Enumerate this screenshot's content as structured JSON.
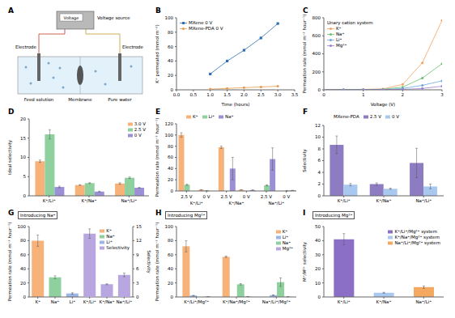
{
  "diagram": {
    "label": "A",
    "texts": {
      "voltage_source": "Voltage source",
      "display": "Voltage",
      "electrode_left": "Electrode",
      "electrode_right": "Electrode",
      "feed": "Feed solution",
      "membrane": "Membrane",
      "water": "Pure water"
    }
  },
  "chart_data": [
    {
      "label": "B",
      "type": "line",
      "x_label": "Time (hours)",
      "y_label": "K⁺ permeated (mmol m⁻²)",
      "x": [
        1,
        1.5,
        2,
        2.5,
        3
      ],
      "series": [
        {
          "name": "MXene 0 V",
          "color": "#2f6db5",
          "marker": "square",
          "line_style": "solid",
          "values": [
            22,
            40,
            55,
            72,
            92
          ]
        },
        {
          "name": "MXene-PDA 0 V",
          "color": "#e89a4a",
          "marker": "circle",
          "line_style": "solid",
          "values": [
            1,
            2,
            3,
            4,
            5
          ]
        }
      ],
      "xlim": [
        0,
        3.5
      ],
      "xticks": [
        {
          "value": 0,
          "label": "0.0"
        },
        0.5,
        {
          "value": 1,
          "label": "1.0"
        },
        1.5,
        {
          "value": 2,
          "label": "2.0"
        },
        2.5,
        {
          "value": 3,
          "label": "3.0"
        },
        3.5
      ],
      "ylim": [
        0,
        100
      ],
      "yticks": [
        0,
        20,
        40,
        60,
        80,
        100
      ],
      "legend": "upper left"
    },
    {
      "label": "C",
      "type": "line",
      "title": "Unary cation system",
      "x_label": "Voltage (V)",
      "y_label": "Permeation rate (mmol m⁻² hour⁻¹)",
      "x": [
        0,
        0.5,
        1,
        1.5,
        2,
        2.5,
        3
      ],
      "series": [
        {
          "name": "K⁺",
          "color": "#f4a261",
          "marker": "circle",
          "line_style": "solid",
          "values": [
            2,
            3,
            5,
            10,
            60,
            300,
            770
          ]
        },
        {
          "name": "Na⁺",
          "color": "#6cc070",
          "marker": "circle",
          "line_style": "solid",
          "values": [
            1,
            2,
            3,
            6,
            30,
            130,
            290
          ]
        },
        {
          "name": "Li⁺",
          "color": "#6fa8dc",
          "marker": "circle",
          "line_style": "solid",
          "values": [
            0.5,
            1,
            2,
            4,
            15,
            50,
            100
          ]
        },
        {
          "name": "Mg²⁺",
          "color": "#9a7fd1",
          "marker": "circle",
          "line_style": "solid",
          "values": [
            0.2,
            0.5,
            1,
            2,
            5,
            15,
            40
          ]
        }
      ],
      "xlim": [
        0,
        3
      ],
      "xticks": [
        0,
        1,
        2,
        3
      ],
      "ylim": [
        0,
        800
      ],
      "yticks": [
        0,
        200,
        400,
        600,
        800
      ],
      "legend": "upper left"
    },
    {
      "label": "D",
      "type": "bar",
      "y_label": "Ideal selectivity",
      "categories": [
        "K⁺/Li⁺",
        "K⁺/Na⁺",
        "Na⁺/Li⁺"
      ],
      "series": [
        {
          "name": "3.0 V",
          "color": "#f7b27a",
          "values": [
            9,
            2.8,
            3.2
          ],
          "errors": [
            0.3,
            0.1,
            0.2
          ]
        },
        {
          "name": "2.5 V",
          "color": "#8fd19e",
          "values": [
            16,
            3.3,
            4.7
          ],
          "errors": [
            1.2,
            0.1,
            0.2
          ]
        },
        {
          "name": "0 V",
          "color": "#9b8fd6",
          "values": [
            2.3,
            1.1,
            2.1
          ],
          "errors": [
            0.2,
            0.1,
            0.1
          ]
        }
      ],
      "ylim": [
        0,
        20
      ],
      "yticks": [
        0,
        5,
        10,
        15,
        20
      ],
      "legend": "upper right"
    },
    {
      "label": "E",
      "type": "bar",
      "y_label": "Permeation rate (mmol m⁻² hour⁻¹)",
      "categories": [
        "2.5 V",
        "0 V",
        "2.5 V",
        "0 V",
        "2.5 V",
        "0 V"
      ],
      "groups": [
        "K⁺/Li⁺",
        "K⁺/Na⁺",
        "Na⁺/Li⁺"
      ],
      "series": [
        {
          "name": "K⁺",
          "color": "#f7b27a",
          "values": [
            100,
            2,
            78,
            2,
            null,
            null
          ],
          "errors": [
            4,
            0.3,
            2,
            0.3,
            null,
            null
          ]
        },
        {
          "name": "Li⁺",
          "color": "#8fd19e",
          "values": [
            11,
            0.5,
            null,
            null,
            10,
            0.3
          ],
          "errors": [
            1,
            0.1,
            null,
            null,
            1,
            0.1
          ]
        },
        {
          "name": "Na⁺",
          "color": "#9b8fd6",
          "values": [
            null,
            null,
            40,
            1.5,
            57,
            1
          ],
          "errors": [
            null,
            null,
            20,
            0.3,
            20,
            0.2
          ]
        }
      ],
      "ylim": [
        0,
        120
      ],
      "yticks": [
        0,
        20,
        40,
        60,
        80,
        100,
        120
      ],
      "legend": "top"
    },
    {
      "label": "F",
      "type": "bar",
      "title": "MXene-PDA",
      "y_label": "Selectivity",
      "categories": [
        "K⁺/Li⁺",
        "K⁺/Na⁺",
        "Na⁺/Li⁺"
      ],
      "series": [
        {
          "name": "2.5 V",
          "color": "#8e7cc3",
          "values": [
            8.7,
            2,
            5.6
          ],
          "errors": [
            1.5,
            0.2,
            2.5
          ]
        },
        {
          "name": "0 V",
          "color": "#a9c8f0",
          "values": [
            1.9,
            1.2,
            1.6
          ],
          "errors": [
            0.2,
            0.1,
            0.4
          ]
        }
      ],
      "ylim": [
        0,
        12
      ],
      "yticks": [
        0,
        2,
        4,
        6,
        8,
        10,
        12
      ],
      "legend": "top"
    },
    {
      "label": "G",
      "type": "bar",
      "stacked": true,
      "title": "Introducing Na⁺",
      "y_label": "Permeation rate (mmol m⁻² hour⁻¹)",
      "y2_label": "Selectivity",
      "categories": [
        "K⁺",
        "Na⁺",
        "Li⁺",
        "K⁺/Li⁺",
        "K⁺/Na⁺",
        "Na⁺/Li⁺"
      ],
      "series": [
        {
          "name": "K⁺",
          "color": "#f7b27a",
          "values": [
            80,
            null,
            null,
            null,
            null,
            null
          ],
          "errors": [
            8,
            null,
            null,
            null,
            null,
            null
          ]
        },
        {
          "name": "Na⁺",
          "color": "#8fd19e",
          "values": [
            null,
            28,
            null,
            null,
            null,
            null
          ],
          "errors": [
            null,
            2,
            null,
            null,
            null,
            null
          ]
        },
        {
          "name": "Li⁺",
          "color": "#9ab7e8",
          "values": [
            null,
            null,
            5,
            null,
            null,
            null
          ],
          "errors": [
            null,
            null,
            1,
            null,
            null,
            null
          ]
        },
        {
          "name": "Selectivity",
          "color": "#b7a6e0",
          "axis": "y2",
          "values": [
            null,
            null,
            null,
            13.5,
            2.7,
            4.7
          ],
          "errors": [
            null,
            null,
            null,
            1,
            0.1,
            0.4
          ]
        }
      ],
      "ylim": [
        0,
        100
      ],
      "yticks": [
        0,
        20,
        40,
        60,
        80,
        100
      ],
      "y2lim": [
        0,
        15
      ],
      "y2ticks": [
        0,
        3,
        6,
        9,
        12,
        15
      ],
      "legend": "upper right"
    },
    {
      "label": "H",
      "type": "bar",
      "title": "Introducing Mg²⁺",
      "y_label": "Permeation rate (mmol m⁻² hour⁻¹)",
      "categories": [
        "K⁺/Li⁺/Mg²⁺",
        "K⁺/Na⁺/Mg²⁺",
        "Na⁺/Li⁺/Mg²⁺"
      ],
      "series": [
        {
          "name": "K⁺",
          "color": "#f7b27a",
          "values": [
            72,
            57,
            null
          ],
          "errors": [
            8,
            1,
            null
          ]
        },
        {
          "name": "Li⁺",
          "color": "#9ab7e8",
          "values": [
            2,
            null,
            2.5
          ],
          "errors": [
            0.3,
            null,
            0.3
          ]
        },
        {
          "name": "Na⁺",
          "color": "#8fd19e",
          "values": [
            null,
            18,
            21
          ],
          "errors": [
            null,
            1,
            6
          ]
        },
        {
          "name": "Mg²⁺",
          "color": "#b7a6e0",
          "values": [
            0.5,
            0.5,
            0.3
          ],
          "errors": [
            0.1,
            0.1,
            0.1
          ]
        }
      ],
      "ylim": [
        0,
        100
      ],
      "yticks": [
        0,
        20,
        40,
        60,
        80,
        100
      ],
      "legend": "upper right"
    },
    {
      "label": "I",
      "type": "bar",
      "stacked": true,
      "title": "Introducing Mg²⁺",
      "y_label": "M⁺/M²⁺ selectivity",
      "categories": [
        "K⁺/Li⁺",
        "K⁺/Na⁺",
        "Na⁺/Li⁺"
      ],
      "series": [
        {
          "name": "K⁺/Li⁺/Mg²⁺ system",
          "color": "#8b6fc7",
          "values": [
            41,
            null,
            null
          ],
          "errors": [
            4,
            null,
            null
          ]
        },
        {
          "name": "K⁺/Na⁺/Mg²⁺ system",
          "color": "#a9c8f0",
          "values": [
            null,
            3,
            null
          ],
          "errors": [
            null,
            0.3,
            null
          ]
        },
        {
          "name": "Na⁺/Li⁺/Mg²⁺ system",
          "color": "#f5a860",
          "values": [
            null,
            null,
            7
          ],
          "errors": [
            null,
            null,
            0.8
          ]
        }
      ],
      "ylim": [
        0,
        50
      ],
      "yticks": [
        0,
        10,
        20,
        30,
        40,
        50
      ],
      "legend": "upper right"
    }
  ]
}
